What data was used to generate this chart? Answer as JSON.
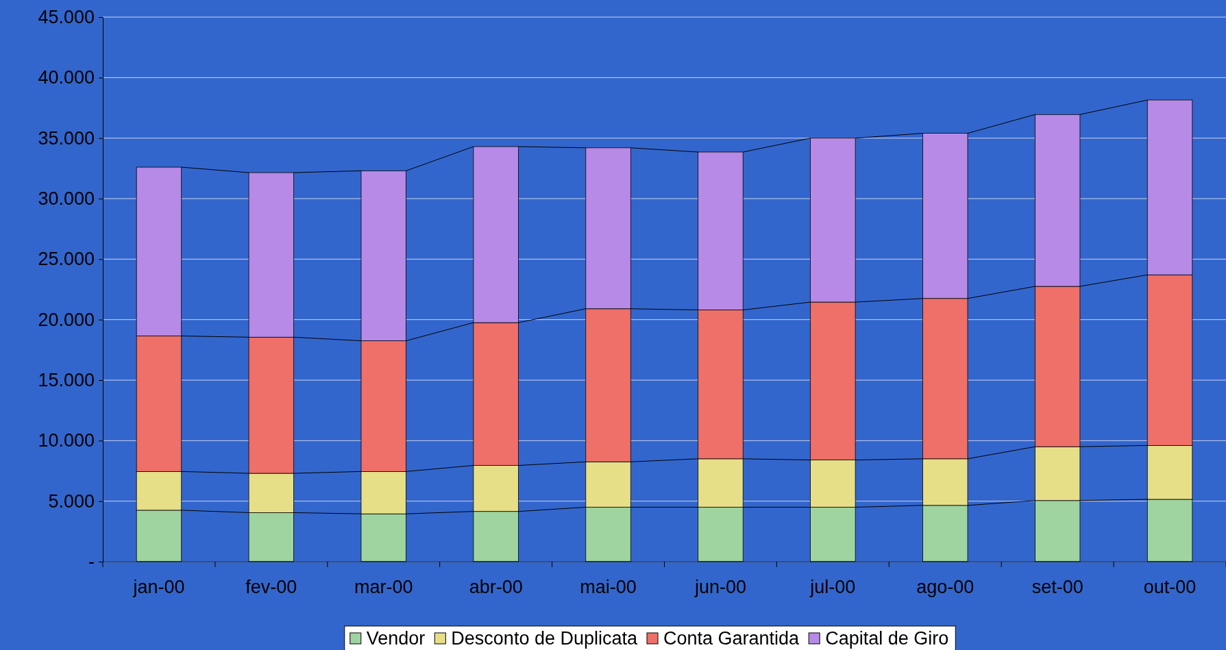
{
  "chart_data": {
    "type": "bar",
    "stacked": true,
    "categories": [
      "jan-00",
      "fev-00",
      "mar-00",
      "abr-00",
      "mai-00",
      "jun-00",
      "jul-00",
      "ago-00",
      "set-00",
      "out-00"
    ],
    "series": [
      {
        "name": "Vendor",
        "color": "#9fd4a0",
        "values": [
          4250,
          4050,
          3950,
          4150,
          4500,
          4500,
          4500,
          4650,
          5050,
          5150
        ]
      },
      {
        "name": "Desconto de Duplicata",
        "color": "#e6df88",
        "values": [
          3200,
          3250,
          3500,
          3800,
          3750,
          4000,
          3900,
          3850,
          4450,
          4450
        ]
      },
      {
        "name": "Conta Garantida",
        "color": "#ee7068",
        "values": [
          11200,
          11250,
          10800,
          11800,
          12650,
          12300,
          13050,
          13250,
          13250,
          14100
        ]
      },
      {
        "name": "Capital de Giro",
        "color": "#b68ae6",
        "values": [
          13950,
          13600,
          14050,
          14550,
          13300,
          13050,
          13550,
          13650,
          14200,
          14450
        ]
      }
    ],
    "ylim": [
      0,
      45000
    ],
    "yticks": [
      {
        "value": 0,
        "label": "-"
      },
      {
        "value": 5000,
        "label": "5.000"
      },
      {
        "value": 10000,
        "label": "10.000"
      },
      {
        "value": 15000,
        "label": "15.000"
      },
      {
        "value": 20000,
        "label": "20.000"
      },
      {
        "value": 25000,
        "label": "25.000"
      },
      {
        "value": 30000,
        "label": "30.000"
      },
      {
        "value": 35000,
        "label": "35.000"
      },
      {
        "value": 40000,
        "label": "40.000"
      },
      {
        "value": 45000,
        "label": "45.000"
      }
    ],
    "grid": "y",
    "legend": "bottom"
  }
}
